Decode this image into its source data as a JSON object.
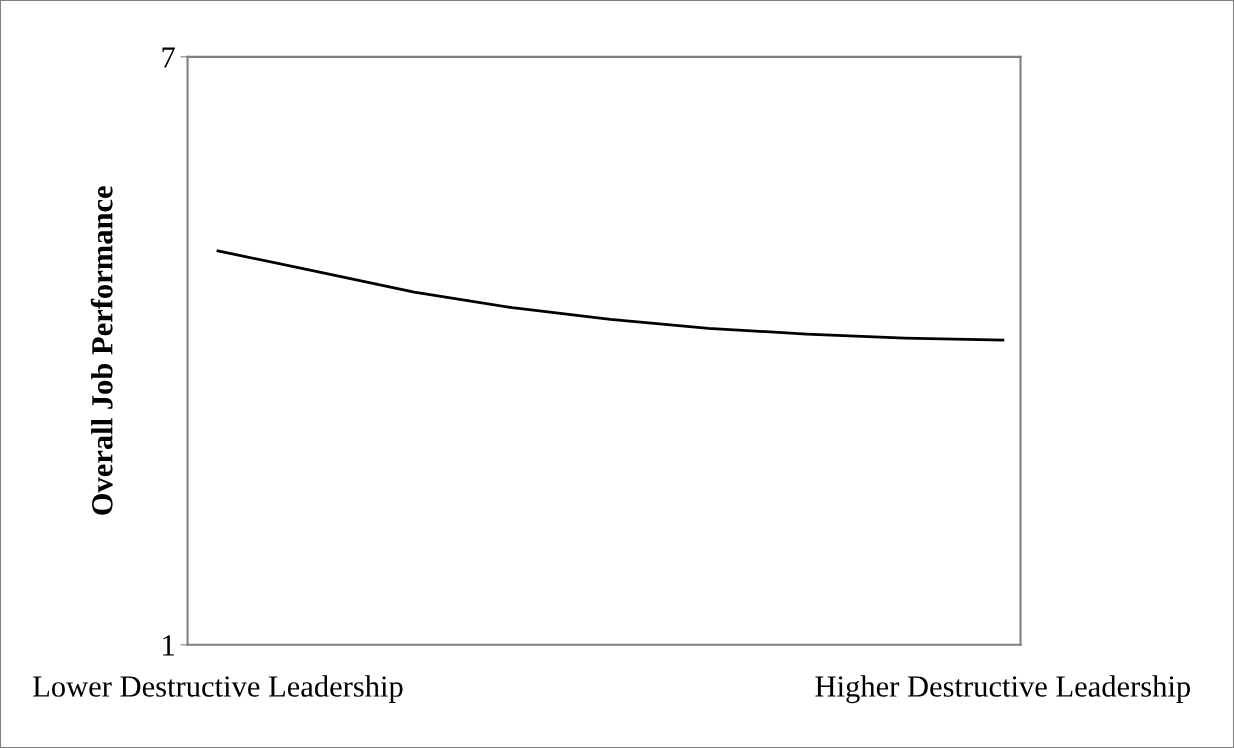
{
  "chart_data": {
    "type": "line",
    "ylabel": "Overall Job Performance",
    "categories": [
      "Lower Destructive Leadership",
      null,
      null,
      null,
      null,
      null,
      null,
      null,
      "Higher Destructive Leadership"
    ],
    "series": [
      {
        "color": "#000000",
        "values": [
          5.02,
          4.81,
          4.6,
          4.44,
          4.32,
          4.23,
          4.17,
          4.13,
          4.11
        ]
      }
    ],
    "ylim": [
      1,
      7
    ],
    "yticks": [
      1,
      7
    ],
    "grid": false,
    "legend": false,
    "marker": "none",
    "line_style": "solid"
  }
}
